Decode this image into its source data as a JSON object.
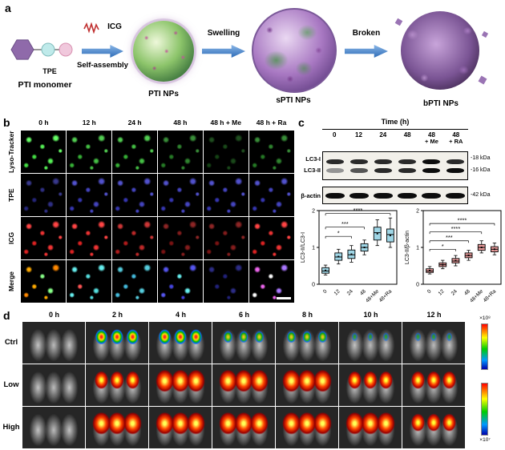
{
  "figure": {
    "panel_a": {
      "label": "a",
      "tpe": "TPE",
      "monomer": "PTI monomer",
      "icg": "ICG",
      "self_assembly": "Self-assembly",
      "pti_nps": "PTI NPs",
      "swelling": "Swelling",
      "spti_nps": "sPTI NPs",
      "broken": "Broken",
      "bpti_nps": "bPTI NPs"
    },
    "panel_b": {
      "label": "b",
      "columns": [
        "0 h",
        "12 h",
        "24 h",
        "48 h",
        "48 h + Me",
        "48 h + Ra"
      ],
      "rows": [
        "Lyso-Tracker",
        "TPE",
        "ICG",
        "Merge"
      ]
    },
    "panel_c": {
      "label": "c",
      "time_header": "Time  (h)",
      "lanes": [
        "0",
        "12",
        "24",
        "48",
        "48",
        "48"
      ],
      "lane_sub": [
        "",
        "",
        "",
        "",
        "+ Me",
        "+ RA"
      ],
      "band_labels": [
        "LC3-I",
        "LC3-II",
        "β-actin"
      ],
      "kda_labels": [
        "-18 kDa",
        "-16 kDa",
        "-42 kDa"
      ]
    },
    "panel_d": {
      "label": "d",
      "columns": [
        "0 h",
        "2 h",
        "4 h",
        "6 h",
        "8 h",
        "10 h",
        "12 h"
      ],
      "rows": [
        "Ctrl",
        "Low",
        "High"
      ],
      "colorbar_high": "×10⁸",
      "colorbar_low": "×10⁷"
    }
  },
  "chart_data": [
    {
      "type": "box",
      "title": "",
      "ylabel": "LC3-II/LC3-I",
      "ylim": [
        0,
        2
      ],
      "yticks": [
        0,
        1,
        2
      ],
      "categories": [
        "0",
        "12",
        "24",
        "48",
        "48+Me",
        "48+Ra"
      ],
      "color": "#a8dcе8",
      "box_color": "#9fd6e6",
      "boxes": [
        {
          "low": 0.25,
          "q1": 0.3,
          "med": 0.36,
          "q3": 0.45,
          "high": 0.52
        },
        {
          "low": 0.55,
          "q1": 0.65,
          "med": 0.74,
          "q3": 0.85,
          "high": 0.95
        },
        {
          "low": 0.6,
          "q1": 0.7,
          "med": 0.8,
          "q3": 0.93,
          "high": 1.05
        },
        {
          "low": 0.8,
          "q1": 0.9,
          "med": 1.0,
          "q3": 1.1,
          "high": 1.2
        },
        {
          "low": 1.05,
          "q1": 1.2,
          "med": 1.4,
          "q3": 1.55,
          "high": 1.75
        },
        {
          "low": 1.0,
          "q1": 1.15,
          "med": 1.35,
          "q3": 1.5,
          "high": 1.8
        }
      ],
      "annotations": [
        {
          "label": "*",
          "x1": 0,
          "x2": 2,
          "y": 1.3
        },
        {
          "label": "***",
          "x1": 0,
          "x2": 3,
          "y": 1.55
        },
        {
          "label": "****",
          "x1": 0,
          "x2": 5,
          "y": 1.92
        }
      ]
    },
    {
      "type": "box",
      "title": "",
      "ylabel": "LC3-II/β-actin",
      "ylim": [
        0,
        2
      ],
      "yticks": [
        0,
        1,
        2
      ],
      "categories": [
        "0",
        "12",
        "24",
        "48",
        "48+Me",
        "48+Ra"
      ],
      "box_color": "#e89a9a",
      "boxes": [
        {
          "low": 0.28,
          "q1": 0.32,
          "med": 0.36,
          "q3": 0.42,
          "high": 0.48
        },
        {
          "low": 0.42,
          "q1": 0.48,
          "med": 0.53,
          "q3": 0.58,
          "high": 0.65
        },
        {
          "low": 0.5,
          "q1": 0.58,
          "med": 0.63,
          "q3": 0.7,
          "high": 0.78
        },
        {
          "low": 0.65,
          "q1": 0.72,
          "med": 0.78,
          "q3": 0.85,
          "high": 0.92
        },
        {
          "low": 0.85,
          "q1": 0.92,
          "med": 1.0,
          "q3": 1.08,
          "high": 1.18
        },
        {
          "low": 0.8,
          "q1": 0.88,
          "med": 0.95,
          "q3": 1.02,
          "high": 1.12
        }
      ],
      "annotations": [
        {
          "label": "*",
          "x1": 0,
          "x2": 2,
          "y": 0.95
        },
        {
          "label": "***",
          "x1": 0,
          "x2": 3,
          "y": 1.18
        },
        {
          "label": "****",
          "x1": 0,
          "x2": 4,
          "y": 1.42
        },
        {
          "label": "****",
          "x1": 0,
          "x2": 5,
          "y": 1.65
        }
      ]
    }
  ]
}
